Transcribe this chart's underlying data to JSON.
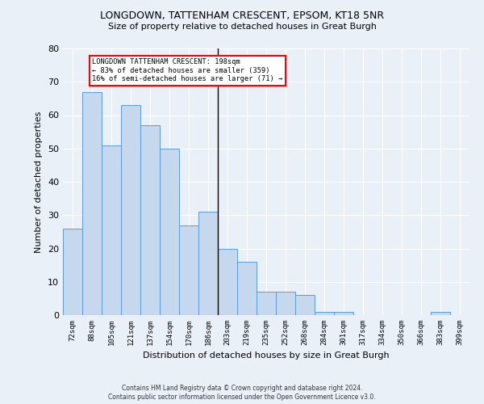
{
  "title1": "LONGDOWN, TATTENHAM CRESCENT, EPSOM, KT18 5NR",
  "title2": "Size of property relative to detached houses in Great Burgh",
  "xlabel": "Distribution of detached houses by size in Great Burgh",
  "ylabel": "Number of detached properties",
  "categories": [
    "72sqm",
    "88sqm",
    "105sqm",
    "121sqm",
    "137sqm",
    "154sqm",
    "170sqm",
    "186sqm",
    "203sqm",
    "219sqm",
    "235sqm",
    "252sqm",
    "268sqm",
    "284sqm",
    "301sqm",
    "317sqm",
    "334sqm",
    "350sqm",
    "366sqm",
    "383sqm",
    "399sqm"
  ],
  "values": [
    26,
    67,
    51,
    63,
    57,
    50,
    27,
    31,
    20,
    16,
    7,
    7,
    6,
    1,
    1,
    0,
    0,
    0,
    0,
    1,
    0
  ],
  "bar_color": "#c5d8ed",
  "bar_edge_color": "#5b9bd5",
  "ylim": [
    0,
    80
  ],
  "yticks": [
    0,
    10,
    20,
    30,
    40,
    50,
    60,
    70,
    80
  ],
  "property_line_index": 7.5,
  "annotation_text1": "LONGDOWN TATTENHAM CRESCENT: 198sqm",
  "annotation_text2": "← 83% of detached houses are smaller (359)",
  "annotation_text3": "16% of semi-detached houses are larger (71) →",
  "footer1": "Contains HM Land Registry data © Crown copyright and database right 2024.",
  "footer2": "Contains public sector information licensed under the Open Government Licence v3.0.",
  "background_color": "#eaf0f8",
  "plot_bg_color": "#eaf0f8"
}
